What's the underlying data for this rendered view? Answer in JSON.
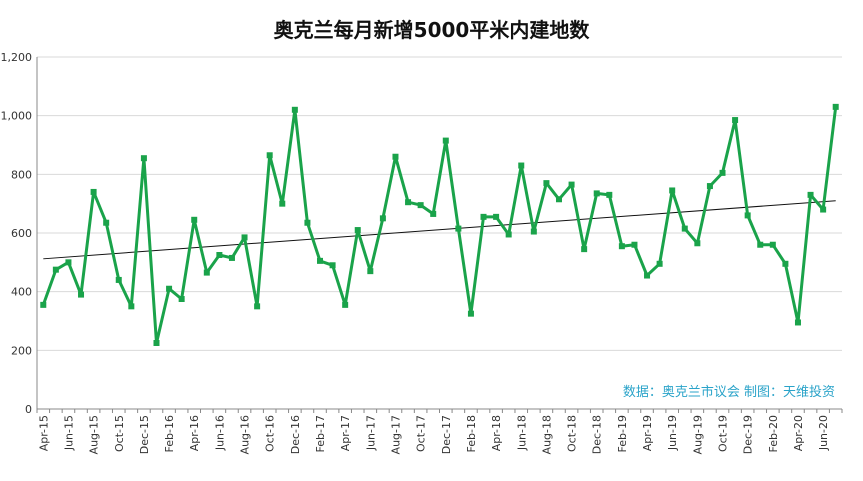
{
  "chart_data": {
    "type": "line",
    "title": "奥克兰每月新增5000平米内建地数",
    "xlabel": "",
    "ylabel": "",
    "ylim": [
      0,
      1200
    ],
    "yticks": [
      0,
      200,
      400,
      600,
      800,
      1000,
      1200
    ],
    "ytick_labels": [
      "0",
      "200",
      "400",
      "600",
      "800",
      "1,000",
      "1,200"
    ],
    "xtick_labels": [
      "Apr-15",
      "Jun-15",
      "Aug-15",
      "Oct-15",
      "Dec-15",
      "Feb-16",
      "Apr-16",
      "Jun-16",
      "Aug-16",
      "Oct-16",
      "Dec-16",
      "Feb-17",
      "Apr-17",
      "Jun-17",
      "Aug-17",
      "Oct-17",
      "Dec-17",
      "Feb-18",
      "Apr-18",
      "Jun-18",
      "Aug-18",
      "Oct-18",
      "Dec-18",
      "Feb-19",
      "Apr-19",
      "Jun-19",
      "Aug-19",
      "Oct-19",
      "Dec-19",
      "Feb-20",
      "Apr-20",
      "Jun-20"
    ],
    "grid": true,
    "colors": {
      "series": "#1aa34a",
      "trend": "#111111"
    },
    "series": [
      {
        "values": [
          355,
          475,
          500,
          390,
          740,
          635,
          440,
          350,
          855,
          225,
          410,
          375,
          645,
          465,
          525,
          515,
          585,
          350,
          865,
          700,
          1020,
          635,
          505,
          490,
          355,
          610,
          470,
          650,
          860,
          705,
          695,
          665,
          915,
          615,
          325,
          655,
          655,
          595,
          830,
          605,
          770,
          715,
          765,
          545,
          735,
          730,
          555,
          560,
          455,
          495,
          745,
          615,
          565,
          760,
          805,
          985,
          660,
          560,
          560,
          495,
          295,
          730,
          680,
          1030
        ]
      }
    ],
    "trendline": {
      "start": 512,
      "end": 710
    }
  },
  "source_note": "数据：奥克兰市议会 制图：天维投资"
}
